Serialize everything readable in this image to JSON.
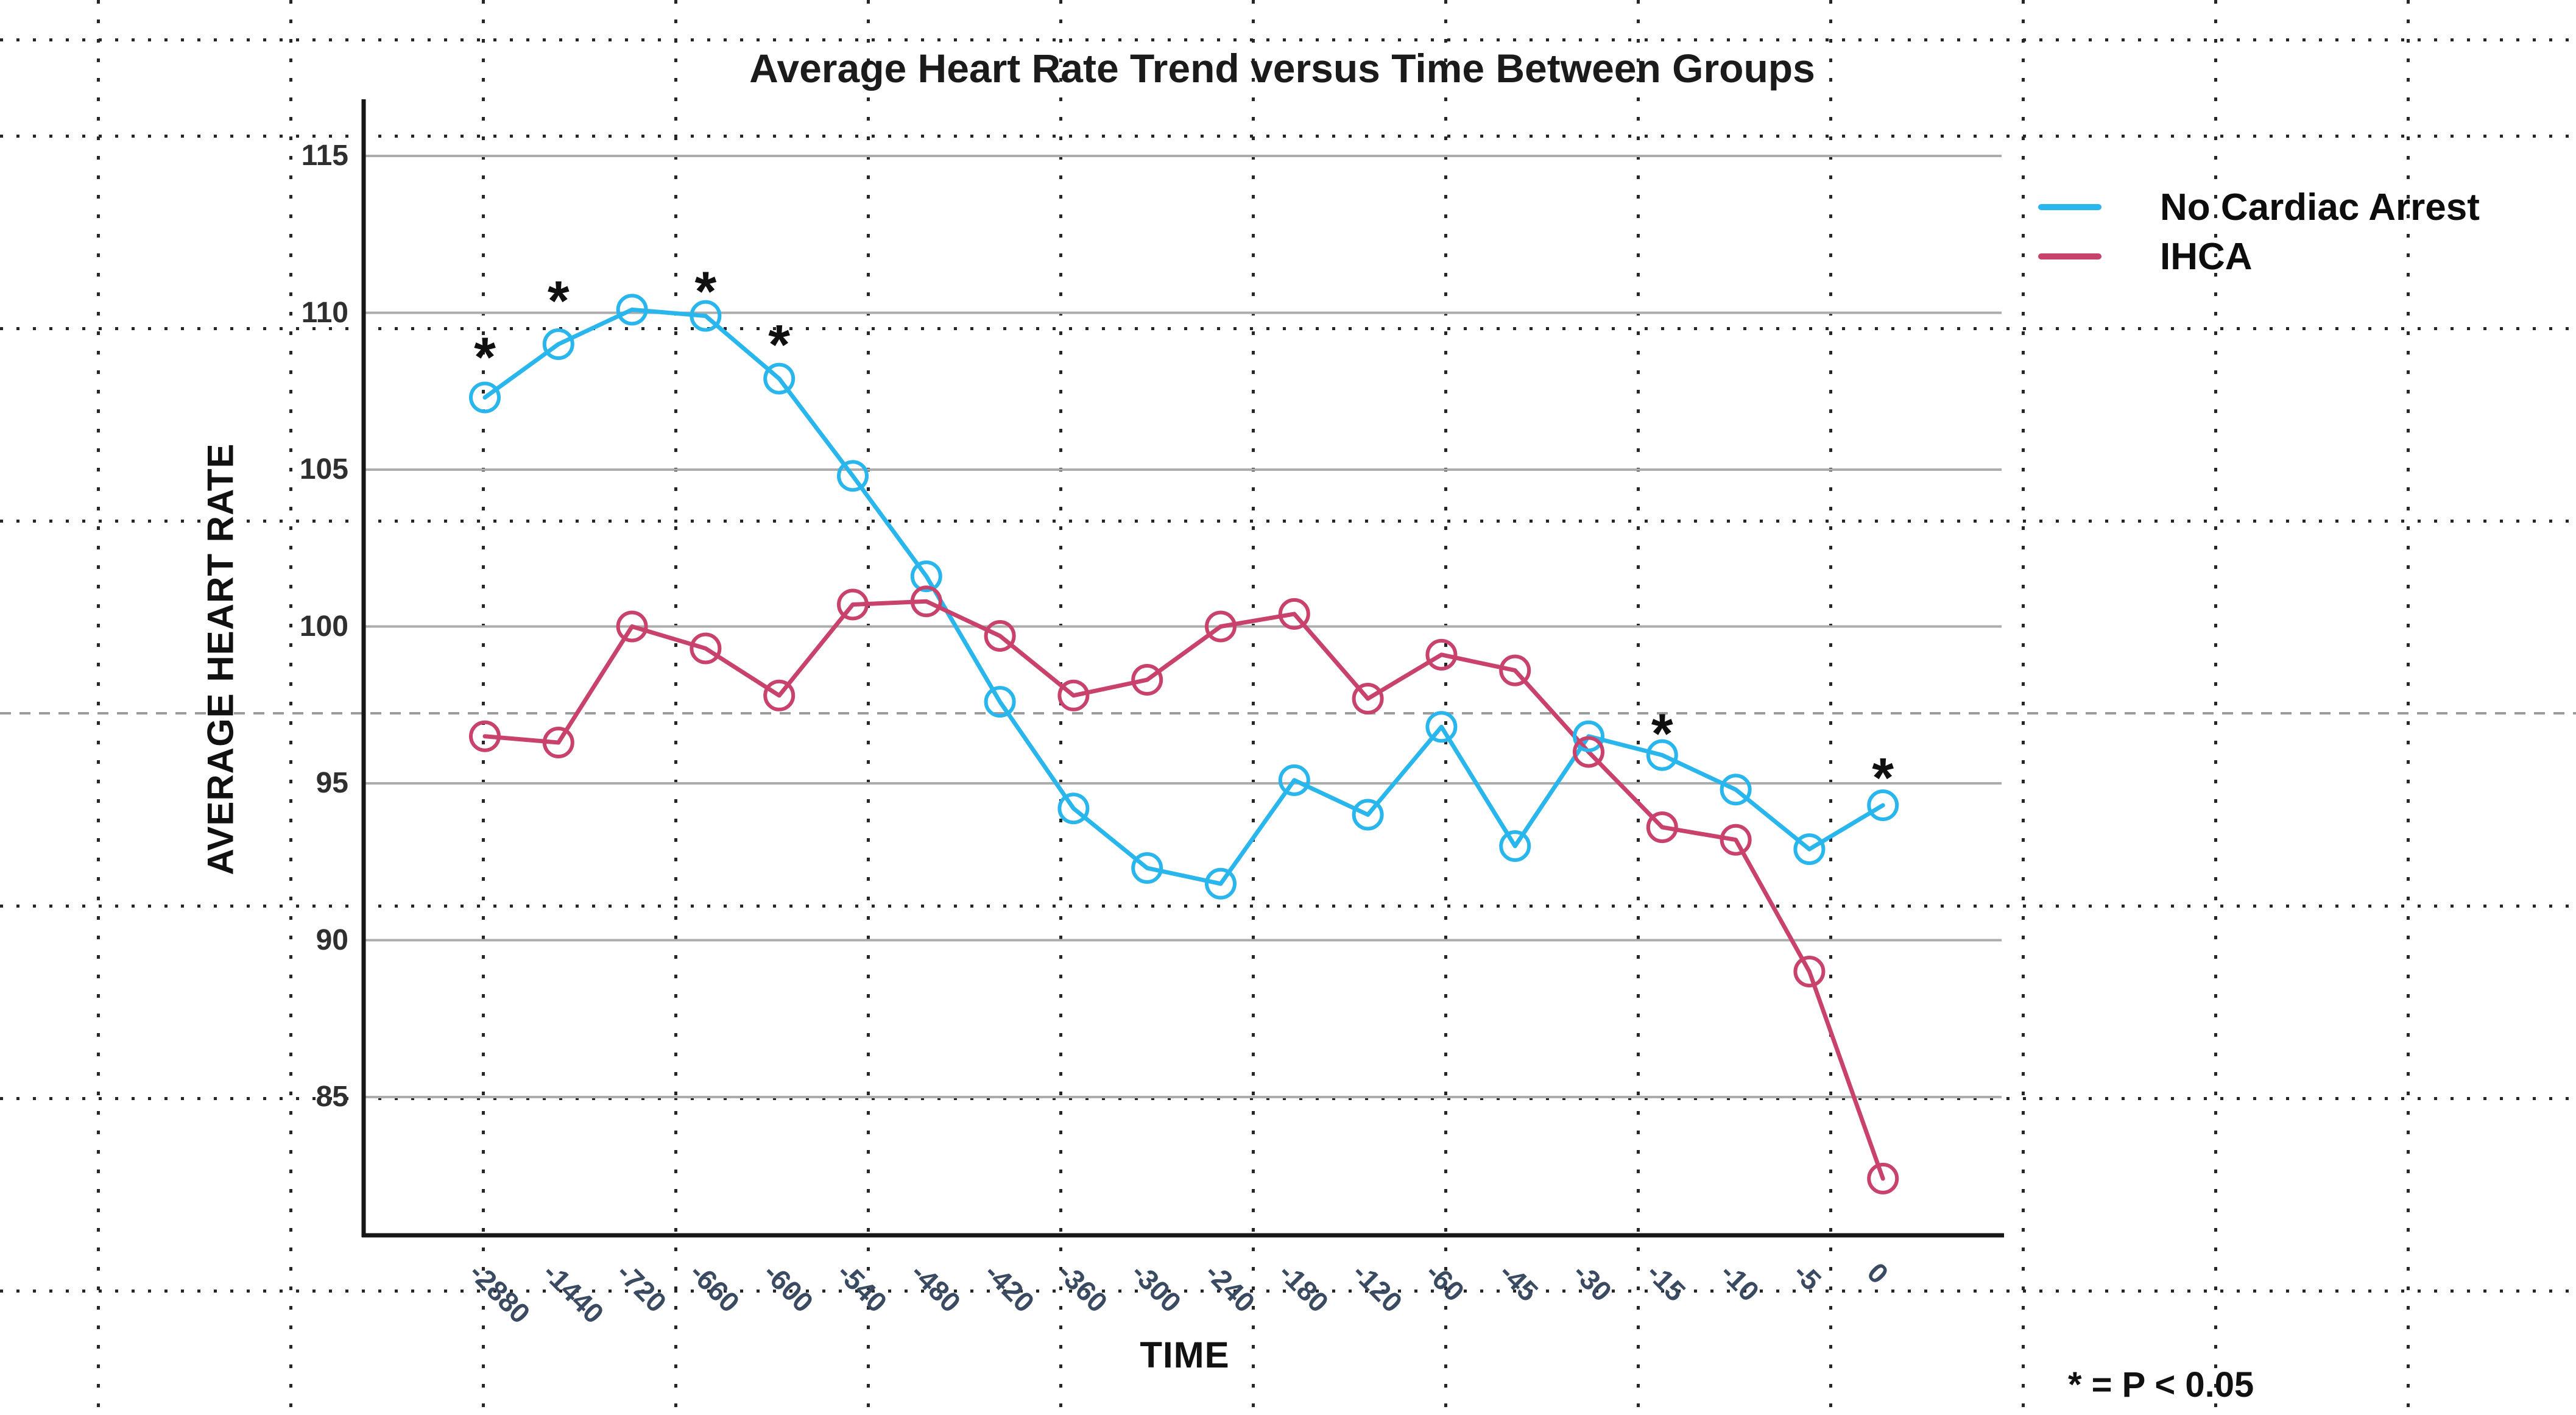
{
  "title": "Average Heart Rate Trend versus Time Between Groups",
  "y_axis": {
    "label": "AVERAGE HEART RATE",
    "ticks": [
      115,
      110,
      105,
      100,
      95,
      90,
      85
    ]
  },
  "x_axis": {
    "label": "TIME",
    "ticks": [
      "-2880",
      "-1440",
      "-720",
      "-660",
      "-600",
      "-540",
      "-480",
      "-420",
      "-360",
      "-300",
      "-240",
      "-180",
      "-120",
      "-60",
      "-45",
      "-30",
      "-15",
      "-10",
      "-5",
      "0"
    ]
  },
  "legend": [
    {
      "label": "No Cardiac Arrest",
      "color": "#29b6ec"
    },
    {
      "label": "IHCA",
      "color": "#c8426c"
    }
  ],
  "note": "* = P < 0.05",
  "chart_data": {
    "type": "line",
    "title": "Average Heart Rate Trend versus Time Between Groups",
    "xlabel": "TIME",
    "ylabel": "AVERAGE HEART RATE",
    "categories": [
      -2880,
      -1440,
      -720,
      -660,
      -600,
      -540,
      -480,
      -420,
      -360,
      -300,
      -240,
      -180,
      -120,
      -60,
      -45,
      -30,
      -15,
      -10,
      -5,
      0
    ],
    "ylim": [
      80.5,
      117
    ],
    "grid": "horizontal",
    "legend_position": "right",
    "marker": "open-circle",
    "series": [
      {
        "name": "No Cardiac Arrest",
        "color": "#29b6ec",
        "values": [
          107.3,
          109.0,
          110.1,
          109.9,
          107.9,
          104.8,
          101.6,
          97.6,
          94.2,
          92.3,
          91.8,
          95.1,
          94.0,
          96.8,
          93.0,
          96.5,
          95.9,
          94.8,
          92.9,
          94.3
        ]
      },
      {
        "name": "IHCA",
        "color": "#c8426c",
        "values": [
          96.5,
          96.3,
          100.0,
          99.3,
          97.8,
          100.7,
          100.8,
          99.7,
          97.8,
          98.3,
          100.0,
          100.4,
          97.7,
          99.1,
          98.6,
          96.0,
          93.6,
          93.2,
          89.0,
          82.4
        ]
      }
    ],
    "significance_markers": {
      "symbol": "*",
      "meaning": "P < 0.05",
      "series": "No Cardiac Arrest",
      "at_x": [
        -2880,
        -1440,
        -660,
        -600,
        -15,
        0
      ],
      "marker_y": [
        108.9,
        110.7,
        111.0,
        109.3,
        96.9,
        95.5
      ]
    }
  }
}
